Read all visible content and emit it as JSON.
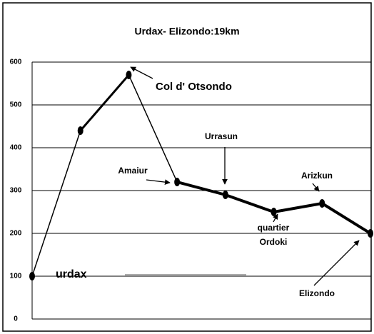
{
  "chart_data": {
    "type": "line",
    "title": "Urdax- Elizondo:19km",
    "categories": [
      null,
      null,
      null,
      null,
      null,
      null,
      null,
      null
    ],
    "values": [
      100,
      440,
      570,
      320,
      290,
      250,
      270,
      200
    ],
    "color": "#000000",
    "ylim": [
      0,
      600
    ],
    "yticks": [
      0,
      100,
      200,
      300,
      400,
      500,
      600
    ],
    "grid": true,
    "annotations": [
      "urdax",
      "Col d' Otsondo",
      "Amaiur",
      "Urrasun",
      "quartier",
      "Ordoki",
      "Arizkun",
      "Elizondo"
    ]
  }
}
